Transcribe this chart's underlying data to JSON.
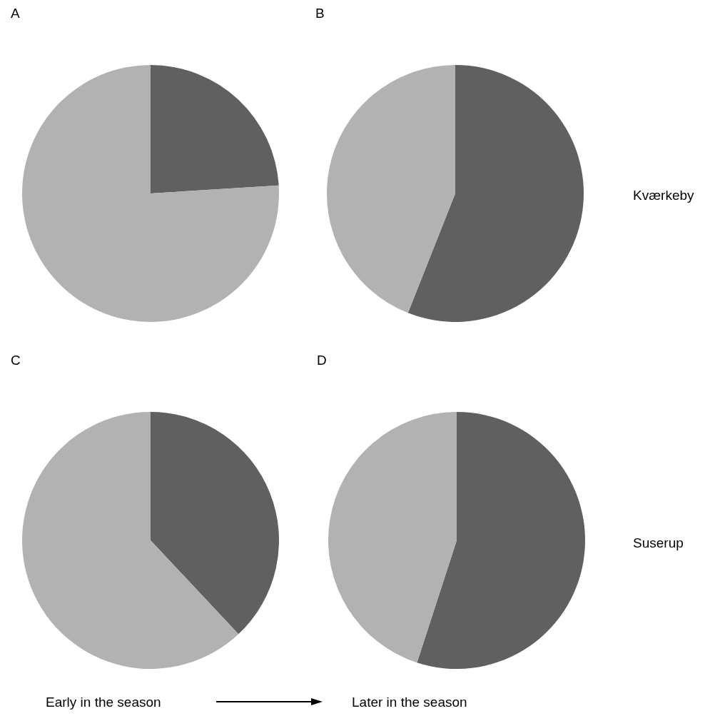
{
  "chart_data": [
    {
      "type": "pie",
      "title": "A",
      "categories": [
        null,
        null
      ],
      "values": [
        24,
        76
      ],
      "colors": [
        "#606060",
        "#b2b2b2"
      ]
    },
    {
      "type": "pie",
      "title": "B",
      "categories": [
        null,
        null
      ],
      "values": [
        56,
        44
      ],
      "colors": [
        "#606060",
        "#b2b2b2"
      ],
      "annotations": [
        "Kværkeby"
      ]
    },
    {
      "type": "pie",
      "title": "C",
      "categories": [
        null,
        null
      ],
      "values": [
        38,
        62
      ],
      "colors": [
        "#606060",
        "#b2b2b2"
      ],
      "annotations": [
        "Early in the season"
      ]
    },
    {
      "type": "pie",
      "title": "D",
      "categories": [
        null,
        null
      ],
      "values": [
        55,
        45
      ],
      "colors": [
        "#606060",
        "#b2b2b2"
      ],
      "annotations": [
        "Suserup",
        "Later in the season"
      ]
    }
  ]
}
